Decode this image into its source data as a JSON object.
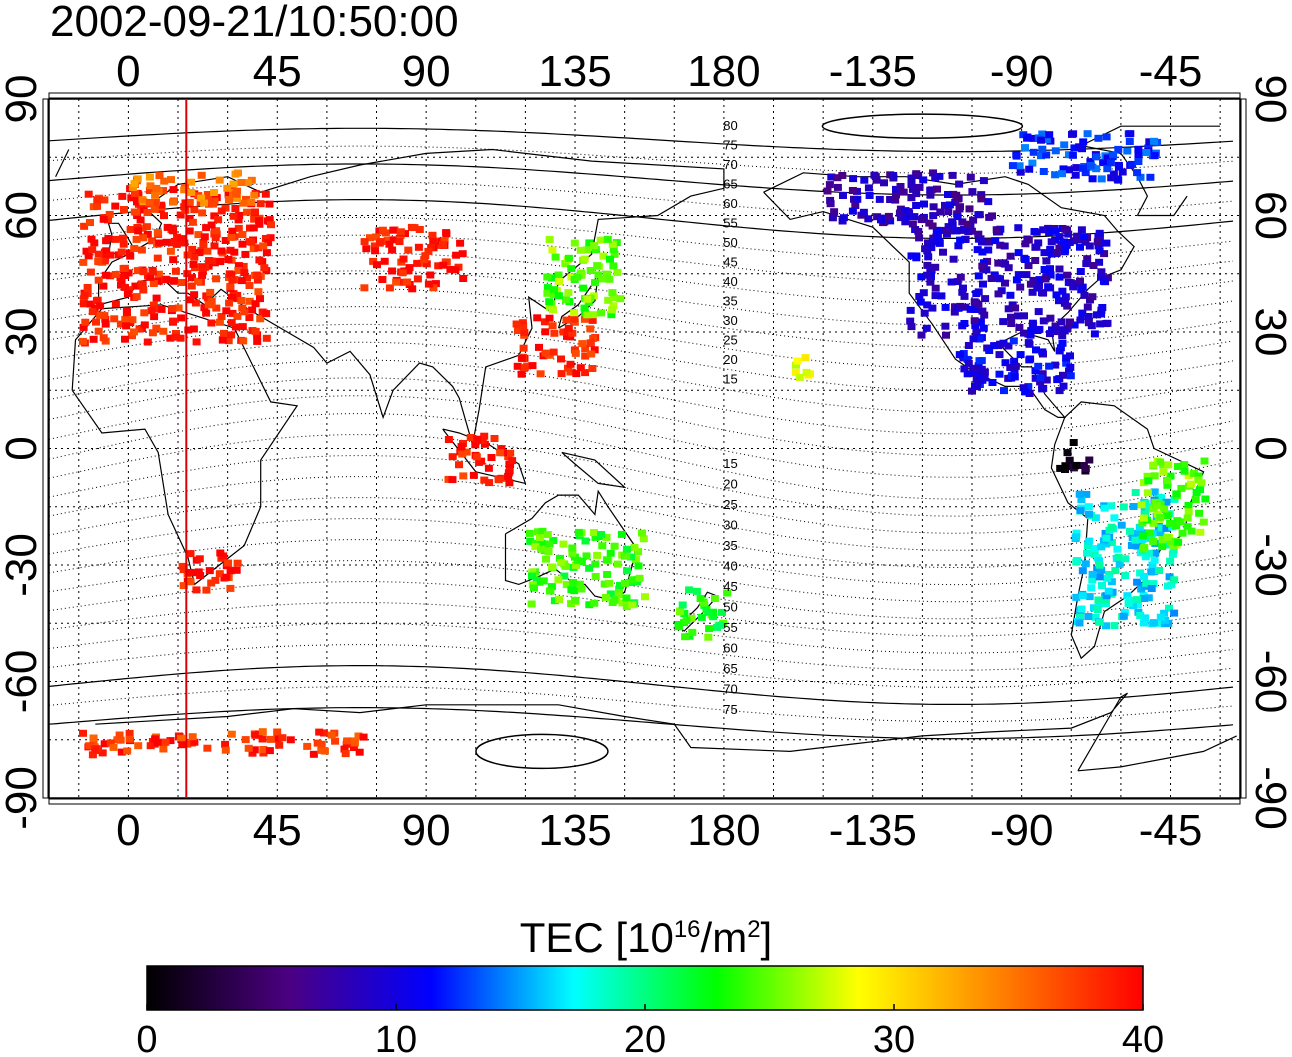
{
  "title": "2002-09-21/10:50:00",
  "map": {
    "lon_ticks": [
      0,
      45,
      90,
      135,
      180,
      -135,
      -90,
      -45
    ],
    "lat_ticks": [
      90,
      60,
      30,
      0,
      -30,
      -60,
      -90
    ],
    "north_mlat_labels": [
      "80",
      "75",
      "70",
      "65",
      "60",
      "55",
      "50",
      "45",
      "40",
      "35",
      "30",
      "25",
      "20",
      "15"
    ],
    "south_mlat_labels": [
      "15",
      "20",
      "25",
      "30",
      "35",
      "40",
      "45",
      "50",
      "55",
      "60",
      "65",
      "70",
      "75"
    ],
    "terminator_longitude": 17.5,
    "colors": {
      "terminator": "#dd0000",
      "grid": "#000000"
    }
  },
  "colorbar": {
    "title_prefix": "TEC  [10",
    "title_exp1": "16",
    "title_mid": "/m",
    "title_exp2": "2",
    "title_suffix": "]",
    "min": 0,
    "max": 40,
    "tick_labels": [
      "0",
      "10",
      "20",
      "30",
      "40"
    ],
    "stops": [
      "#000000",
      "#4b0082",
      "#0000ff",
      "#00ffff",
      "#00ff00",
      "#ffff00",
      "#ff8000",
      "#ff0000"
    ]
  },
  "regions": [
    {
      "name": "europe",
      "lon": [
        -15,
        42
      ],
      "lat": [
        28,
        68
      ],
      "tec": 39
    },
    {
      "name": "europe-north-edge",
      "lon": [
        0,
        38
      ],
      "lat": [
        64,
        72
      ],
      "tec": 35
    },
    {
      "name": "central-asia",
      "lon": [
        70,
        100
      ],
      "lat": [
        42,
        58
      ],
      "tec": 39
    },
    {
      "name": "east-china",
      "lon": [
        115,
        140
      ],
      "lat": [
        20,
        35
      ],
      "tec": 39
    },
    {
      "name": "japan",
      "lon": [
        125,
        148
      ],
      "lat": [
        35,
        55
      ],
      "tec": 25
    },
    {
      "name": "north-america",
      "lon": [
        -125,
        -65
      ],
      "lat": [
        30,
        58
      ],
      "tec": 9
    },
    {
      "name": "canada-north",
      "lon": [
        -150,
        -100
      ],
      "lat": [
        58,
        72
      ],
      "tec": 8
    },
    {
      "name": "gulf-caribbean",
      "lon": [
        -110,
        -75
      ],
      "lat": [
        15,
        30
      ],
      "tec": 10
    },
    {
      "name": "north-atlantic-greenland",
      "lon": [
        -95,
        -50
      ],
      "lat": [
        70,
        82
      ],
      "tec": 12
    },
    {
      "name": "colombia",
      "lon": [
        -80,
        -70
      ],
      "lat": [
        -5,
        3
      ],
      "tec": 1
    },
    {
      "name": "south-america",
      "lon": [
        -75,
        -45
      ],
      "lat": [
        -45,
        -10
      ],
      "tec": 17
    },
    {
      "name": "south-america-east",
      "lon": [
        -55,
        -35
      ],
      "lat": [
        -25,
        -2
      ],
      "tec": 25
    },
    {
      "name": "indonesia",
      "lon": [
        95,
        115
      ],
      "lat": [
        -8,
        5
      ],
      "tec": 39
    },
    {
      "name": "australia",
      "lon": [
        120,
        155
      ],
      "lat": [
        -40,
        -20
      ],
      "tec": 24
    },
    {
      "name": "new-zealand",
      "lon": [
        165,
        180
      ],
      "lat": [
        -48,
        -35
      ],
      "tec": 23
    },
    {
      "name": "south-africa",
      "lon": [
        15,
        32
      ],
      "lat": [
        -36,
        -25
      ],
      "tec": 39
    },
    {
      "name": "antarctic-coast",
      "lon": [
        -15,
        70
      ],
      "lat": [
        -78,
        -72
      ],
      "tec": 38
    },
    {
      "name": "hawaii",
      "lon": [
        -160,
        -155
      ],
      "lat": [
        18,
        25
      ],
      "tec": 28
    }
  ]
}
